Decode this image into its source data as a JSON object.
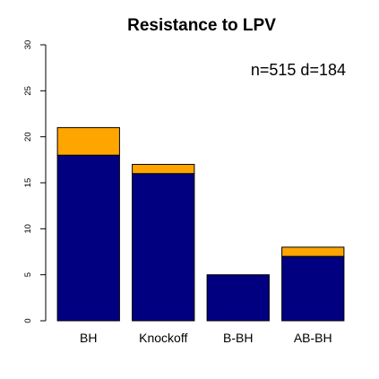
{
  "chart_data": {
    "type": "bar",
    "title": "Resistance to LPV",
    "annotation": "n=515 d=184",
    "xlabel": "",
    "ylabel": "",
    "categories": [
      "BH",
      "Knockoff",
      "B-BH",
      "AB-BH"
    ],
    "stacked": true,
    "series": [
      {
        "color": "#000080",
        "values": [
          18,
          16,
          5,
          7
        ]
      },
      {
        "color": "#FFA500",
        "values": [
          3,
          1,
          0,
          1
        ]
      }
    ],
    "ylim": [
      0,
      30
    ],
    "yticks": [
      0,
      5,
      10,
      15,
      20,
      25,
      30
    ],
    "grid": false,
    "legend": "none"
  }
}
